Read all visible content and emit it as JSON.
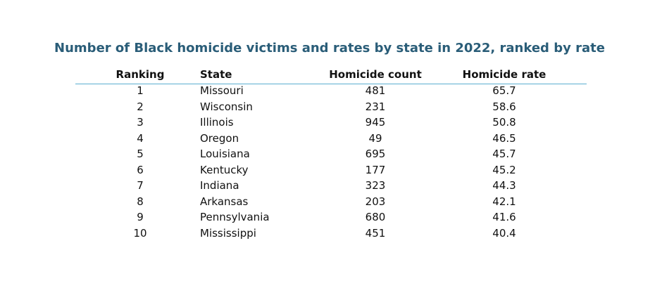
{
  "table": {
    "title": "Number of Black homicide victims and rates by state in 2022, ranked by rate",
    "headers": [
      "Ranking",
      "State",
      "Homicide count",
      "Homicide rate"
    ],
    "rows": [
      [
        1,
        "Missouri",
        481,
        65.7
      ],
      [
        2,
        "Wisconsin",
        231,
        58.6
      ],
      [
        3,
        "Illinois",
        945,
        50.8
      ],
      [
        4,
        "Oregon",
        49,
        46.5
      ],
      [
        5,
        "Louisiana",
        695,
        45.7
      ],
      [
        6,
        "Kentucky",
        177,
        45.2
      ],
      [
        7,
        "Indiana",
        323,
        44.3
      ],
      [
        8,
        "Arkansas",
        203,
        42.1
      ],
      [
        9,
        "Pennsylvania",
        680,
        41.6
      ],
      [
        10,
        "Mississippi",
        451,
        40.4
      ]
    ]
  }
}
